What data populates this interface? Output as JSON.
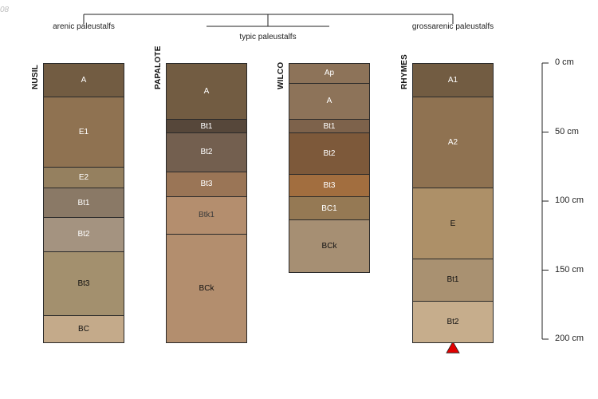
{
  "corner_label": "08",
  "groups": [
    {
      "name": "arenic paleustalfs"
    },
    {
      "name": "typic paleustalfs"
    },
    {
      "name": "grossarenic paleustalfs"
    }
  ],
  "profiles": [
    {
      "name": "NUSIL",
      "horizons": [
        {
          "name": "A",
          "top": 0,
          "bottom": 25,
          "color": "#725c42",
          "text_color": "#ffffff"
        },
        {
          "name": "E1",
          "top": 25,
          "bottom": 76,
          "color": "#8f7251",
          "text_color": "#ffffff"
        },
        {
          "name": "E2",
          "top": 76,
          "bottom": 91,
          "color": "#95805f",
          "text_color": "#ffffff"
        },
        {
          "name": "Bt1",
          "top": 91,
          "bottom": 112,
          "color": "#8a7966",
          "text_color": "#ffffff"
        },
        {
          "name": "Bt2",
          "top": 112,
          "bottom": 137,
          "color": "#a49380",
          "text_color": "#ffffff"
        },
        {
          "name": "Bt3",
          "top": 137,
          "bottom": 183,
          "color": "#a3906e",
          "text_color": "#111111"
        },
        {
          "name": "BC",
          "top": 183,
          "bottom": 203,
          "color": "#c4aa8a",
          "text_color": "#111111"
        }
      ]
    },
    {
      "name": "PAPALOTE",
      "horizons": [
        {
          "name": "A",
          "top": 0,
          "bottom": 41,
          "color": "#725c42",
          "text_color": "#ffffff"
        },
        {
          "name": "Bt1",
          "top": 41,
          "bottom": 51,
          "color": "#56473a",
          "text_color": "#ffffff"
        },
        {
          "name": "Bt2",
          "top": 51,
          "bottom": 79,
          "color": "#735f4f",
          "text_color": "#ffffff"
        },
        {
          "name": "Bt3",
          "top": 79,
          "bottom": 97,
          "color": "#9a7556",
          "text_color": "#ffffff"
        },
        {
          "name": "Btk1",
          "top": 97,
          "bottom": 124,
          "color": "#b48e6e",
          "text_color": "#3a3a3a"
        },
        {
          "name": "BCk",
          "top": 124,
          "bottom": 203,
          "color": "#b38e6e",
          "text_color": "#111111"
        }
      ]
    },
    {
      "name": "WILCO",
      "horizons": [
        {
          "name": "Ap",
          "top": 0,
          "bottom": 15,
          "color": "#8d7359",
          "text_color": "#ffffff"
        },
        {
          "name": "A",
          "top": 15,
          "bottom": 41,
          "color": "#8d7359",
          "text_color": "#ffffff"
        },
        {
          "name": "Bt1",
          "top": 41,
          "bottom": 51,
          "color": "#7d624b",
          "text_color": "#ffffff"
        },
        {
          "name": "Bt2",
          "top": 51,
          "bottom": 81,
          "color": "#7d593a",
          "text_color": "#ffffff"
        },
        {
          "name": "Bt3",
          "top": 81,
          "bottom": 97,
          "color": "#a26e3f",
          "text_color": "#ffffff"
        },
        {
          "name": "BC1",
          "top": 97,
          "bottom": 114,
          "color": "#957954",
          "text_color": "#ffffff"
        },
        {
          "name": "BCk",
          "top": 114,
          "bottom": 152,
          "color": "#a68f73",
          "text_color": "#111111"
        }
      ]
    },
    {
      "name": "RHYMES",
      "horizons": [
        {
          "name": "A1",
          "top": 0,
          "bottom": 25,
          "color": "#725c42",
          "text_color": "#ffffff"
        },
        {
          "name": "A2",
          "top": 25,
          "bottom": 91,
          "color": "#8f7251",
          "text_color": "#ffffff"
        },
        {
          "name": "E",
          "top": 91,
          "bottom": 142,
          "color": "#ad9068",
          "text_color": "#111111"
        },
        {
          "name": "Bt1",
          "top": 142,
          "bottom": 173,
          "color": "#a99171",
          "text_color": "#111111"
        },
        {
          "name": "Bt2",
          "top": 173,
          "bottom": 203,
          "color": "#c6ad8c",
          "text_color": "#111111"
        }
      ],
      "marker": {
        "shape": "triangle",
        "color": "#e00000"
      }
    }
  ],
  "depth_axis": {
    "ticks": [
      {
        "value": 0,
        "label": "0 cm"
      },
      {
        "value": 50,
        "label": "50 cm"
      },
      {
        "value": 100,
        "label": "100 cm"
      },
      {
        "value": 150,
        "label": "150 cm"
      },
      {
        "value": 200,
        "label": "200 cm"
      }
    ]
  }
}
